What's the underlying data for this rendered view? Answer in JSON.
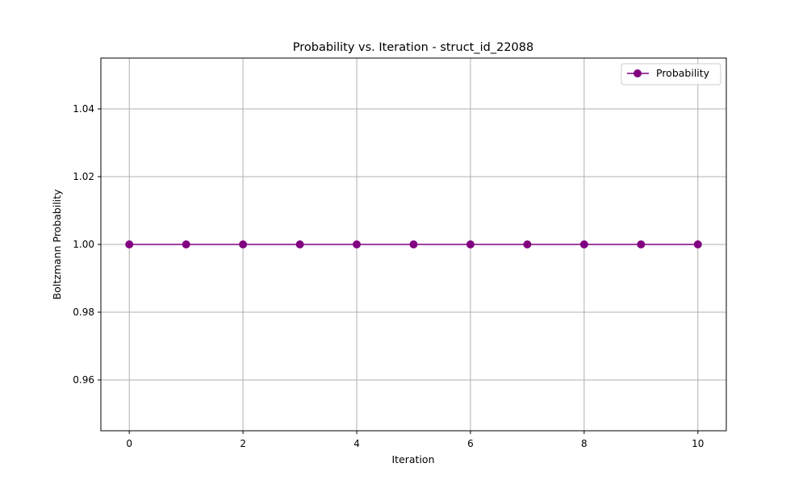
{
  "chart_data": {
    "type": "line",
    "title": "Probability vs. Iteration - struct_id_22088",
    "xlabel": "Iteration",
    "ylabel": "Boltzmann Probability",
    "xlim": [
      -0.5,
      10.5
    ],
    "ylim": [
      0.945,
      1.055
    ],
    "xticks": [
      0,
      2,
      4,
      6,
      8,
      10
    ],
    "yticks": [
      0.96,
      0.98,
      1.0,
      1.02,
      1.04
    ],
    "ytick_labels": [
      "0.96",
      "0.98",
      "1.00",
      "1.02",
      "1.04"
    ],
    "grid": true,
    "legend_position": "top-right",
    "series": [
      {
        "name": "Probability",
        "color": "#800080",
        "marker": "circle",
        "x": [
          0,
          1,
          2,
          3,
          4,
          5,
          6,
          7,
          8,
          9,
          10
        ],
        "y": [
          1.0,
          1.0,
          1.0,
          1.0,
          1.0,
          1.0,
          1.0,
          1.0,
          1.0,
          1.0,
          1.0
        ]
      }
    ]
  }
}
